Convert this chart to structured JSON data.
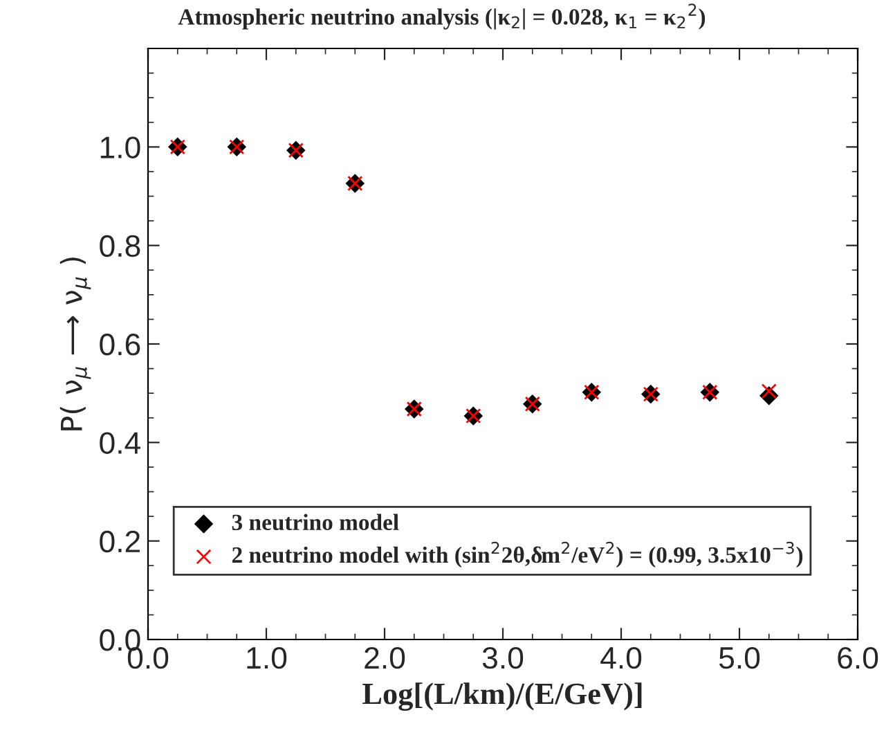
{
  "chart_data": {
    "type": "scatter",
    "title": "Atmospheric neutrino analysis (|κ$_{2}$| = 0.028, κ$_{1}$ = κ$_{2}$$^{2}$)",
    "xlabel": "Log[(L/km)/(E/GeV)]",
    "ylabel": "P( ν$_{μ}$ ⟶ ν$_{μ}$ )",
    "x": [
      0.25,
      0.75,
      1.25,
      1.75,
      2.25,
      2.75,
      3.25,
      3.75,
      4.25,
      4.75,
      5.25
    ],
    "series": [
      {
        "name": "3 neutrino model",
        "color": "#000000",
        "marker": "diamond",
        "values": [
          1.0,
          1.0,
          0.993,
          0.926,
          0.468,
          0.454,
          0.478,
          0.502,
          0.498,
          0.502,
          0.495
        ]
      },
      {
        "name": "2 neutrino model with (sin$^{2}$2θ,δm$^{2}$/eV$^{2}$) = (0.99, 3.5x10$^{−3}$)",
        "color": "#ff0000",
        "marker": "cross",
        "values": [
          1.0,
          1.0,
          0.993,
          0.926,
          0.468,
          0.454,
          0.478,
          0.502,
          0.498,
          0.502,
          0.504
        ]
      }
    ],
    "xlim": [
      0,
      6
    ],
    "xticks": [
      {
        "value": 0,
        "label": "0.0"
      },
      {
        "value": 1,
        "label": "1.0"
      },
      {
        "value": 2,
        "label": "2.0"
      },
      {
        "value": 3,
        "label": "3.0"
      },
      {
        "value": 4,
        "label": "4.0"
      },
      {
        "value": 5,
        "label": "5.0"
      },
      {
        "value": 6,
        "label": "6.0"
      }
    ],
    "ylim": [
      0,
      1.2
    ],
    "yticks": [
      {
        "value": 0,
        "label": "0.0"
      },
      {
        "value": 0.2,
        "label": "0.2"
      },
      {
        "value": 0.4,
        "label": "0.4"
      },
      {
        "value": 0.6,
        "label": "0.6"
      },
      {
        "value": 0.8,
        "label": "0.8"
      },
      {
        "value": 1.0,
        "label": "1.0"
      }
    ],
    "grid": false,
    "legend": "bottom"
  }
}
